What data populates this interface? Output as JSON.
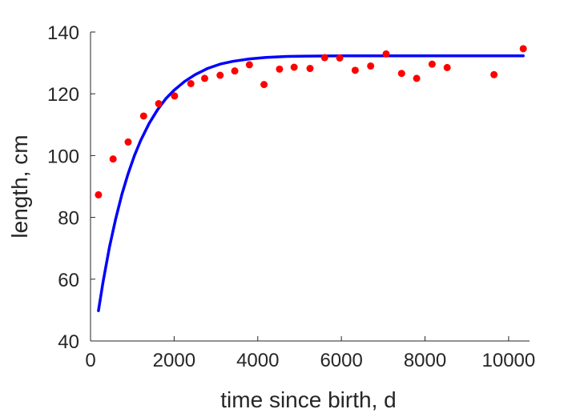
{
  "chart_data": {
    "type": "scatter",
    "title": "",
    "xlabel": "time since birth, d",
    "ylabel": "length, cm",
    "xlim": [
      0,
      10500
    ],
    "ylim": [
      40,
      140
    ],
    "xticks": [
      0,
      2000,
      4000,
      6000,
      8000,
      10000
    ],
    "yticks": [
      40,
      60,
      80,
      100,
      120,
      140
    ],
    "grid": false,
    "legend": "none",
    "series": [
      {
        "kind": "scatter",
        "color": "#ff0000",
        "x": [
          190,
          540,
          900,
          1270,
          1630,
          2010,
          2400,
          2730,
          3100,
          3450,
          3800,
          4150,
          4520,
          4870,
          5250,
          5600,
          5960,
          6330,
          6700,
          7070,
          7440,
          7800,
          8170,
          8530,
          9650,
          10350
        ],
        "y": [
          87.3,
          98.9,
          104.4,
          112.8,
          116.8,
          119.3,
          123.3,
          125.0,
          126.0,
          127.4,
          129.4,
          123.0,
          128.0,
          128.6,
          128.2,
          131.7,
          131.6,
          127.6,
          129.0,
          132.9,
          126.6,
          125.0,
          129.6,
          128.5,
          126.2,
          134.6
        ]
      },
      {
        "kind": "line",
        "color": "#0000ff",
        "x": [
          190,
          300,
          450,
          600,
          750,
          900,
          1050,
          1200,
          1400,
          1600,
          1800,
          2000,
          2250,
          2500,
          2800,
          3100,
          3400,
          3800,
          4200,
          4700,
          5200,
          6000,
          7000,
          8000,
          9000,
          10350
        ],
        "y": [
          49.8,
          59.2,
          70.2,
          79.4,
          87.4,
          94.2,
          100.0,
          104.9,
          110.4,
          114.8,
          118.4,
          121.2,
          124.0,
          126.2,
          128.2,
          129.6,
          130.5,
          131.3,
          131.8,
          132.1,
          132.2,
          132.3,
          132.3,
          132.3,
          132.3,
          132.3
        ]
      }
    ]
  }
}
